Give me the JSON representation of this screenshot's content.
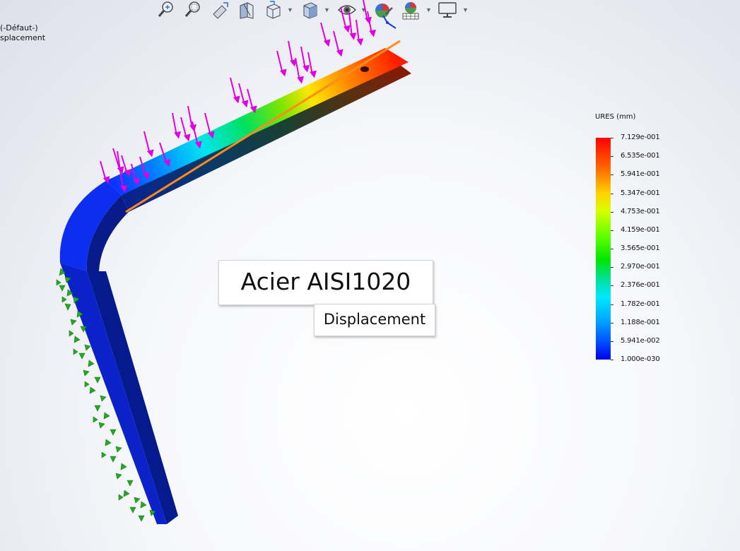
{
  "feature_tree": {
    "config_fragment": "(-Défaut-)",
    "plot_fragment": "splacement"
  },
  "toolbar": {
    "icons": [
      "zoom-to-fit-icon",
      "zoom-to-area-icon",
      "previous-view-icon",
      "section-view-icon",
      "view-orientation-icon",
      "display-style-icon",
      "hide-show-items-icon",
      "edit-appearance-icon",
      "apply-scene-icon",
      "view-settings-icon"
    ]
  },
  "legend": {
    "title": "URES (mm)",
    "labels": [
      "7.129e-001",
      "6.535e-001",
      "5.941e-001",
      "5.347e-001",
      "4.753e-001",
      "4.159e-001",
      "3.565e-001",
      "2.970e-001",
      "2.376e-001",
      "1.782e-001",
      "1.188e-001",
      "5.941e-002",
      "1.000e-030"
    ],
    "colors": {
      "max": "#ff0000",
      "min": "#0000e6"
    }
  },
  "callouts": {
    "material": "Acier AISI1020",
    "result": "Displacement"
  },
  "colors": {
    "load_arrow": "#e000e0",
    "fixture_arrow": "#22aa22",
    "deflection_line": "#ff8c1a",
    "background": "#f7f8fb"
  }
}
